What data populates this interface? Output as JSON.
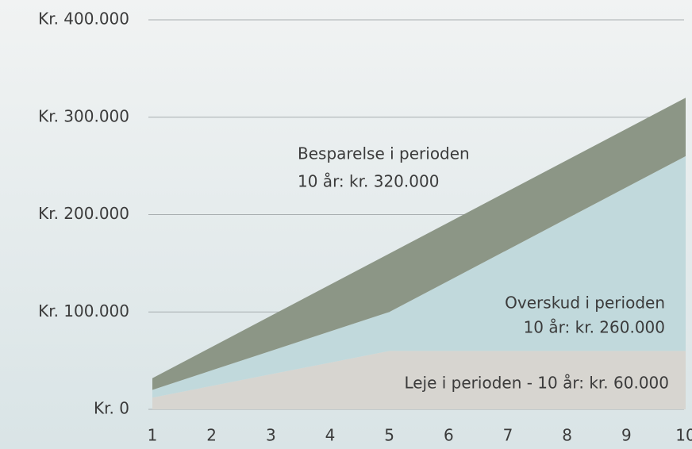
{
  "chart_data": {
    "type": "stacked_area",
    "x": [
      1,
      2,
      3,
      4,
      5,
      6,
      7,
      8,
      9,
      10
    ],
    "xlim": [
      1,
      10
    ],
    "xticks": [
      1,
      2,
      3,
      4,
      5,
      6,
      7,
      8,
      9,
      10
    ],
    "ylim": [
      0,
      400000
    ],
    "yticks": [
      {
        "value": 0,
        "label": "Kr. 0"
      },
      {
        "value": 100000,
        "label": "Kr. 100.000"
      },
      {
        "value": 200000,
        "label": "Kr. 200.000"
      },
      {
        "value": 300000,
        "label": "Kr. 300.000"
      },
      {
        "value": 400000,
        "label": "Kr. 400.000"
      }
    ],
    "grid": true,
    "series": [
      {
        "name": "Leje",
        "color": "#d7d5d0",
        "values": [
          12000,
          24000,
          36000,
          48000,
          60000,
          60000,
          60000,
          60000,
          60000,
          60000
        ]
      },
      {
        "name": "Overskud",
        "color": "#c1d9dc",
        "values": [
          8000,
          16000,
          24000,
          32000,
          40000,
          72000,
          104000,
          136000,
          168000,
          200000
        ]
      },
      {
        "name": "Besparelse",
        "color": "#8c9686",
        "values": [
          12000,
          24000,
          36000,
          48000,
          60000,
          60000,
          60000,
          60000,
          60000,
          60000
        ]
      }
    ],
    "annotations": [
      {
        "lines": [
          "Besparelse i perioden",
          "10 år: kr. 320.000"
        ]
      },
      {
        "lines": [
          "Overskud i perioden",
          "10 år: kr. 260.000"
        ]
      },
      {
        "lines": [
          "Leje i perioden - 10 år: kr. 60.000"
        ]
      }
    ]
  }
}
